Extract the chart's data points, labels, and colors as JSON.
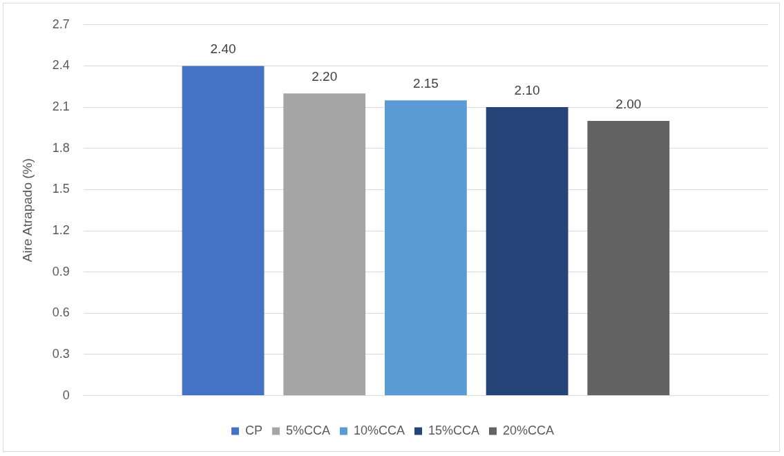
{
  "chart_data": {
    "type": "bar",
    "ylabel": "Aire Atrapado (%)",
    "categories": [
      null
    ],
    "series": [
      {
        "name": "CP",
        "color": "#4472c4",
        "values": [
          2.4
        ],
        "value_labels": [
          "2.40"
        ]
      },
      {
        "name": "5%CCA",
        "color": "#a5a5a5",
        "values": [
          2.2
        ],
        "value_labels": [
          "2.20"
        ]
      },
      {
        "name": "10%CCA",
        "color": "#5b9bd5",
        "values": [
          2.15
        ],
        "value_labels": [
          "2.15"
        ]
      },
      {
        "name": "15%CCA",
        "color": "#264478",
        "values": [
          2.1
        ],
        "value_labels": [
          "2.10"
        ]
      },
      {
        "name": "20%CCA",
        "color": "#636363",
        "values": [
          2.0
        ],
        "value_labels": [
          "2.00"
        ]
      }
    ],
    "ylim": [
      0,
      2.7
    ],
    "yticks": [
      0,
      0.3,
      0.6,
      0.9,
      1.2,
      1.5,
      1.8,
      2.1,
      2.4,
      2.7
    ],
    "grid": "y",
    "legend": "bottom"
  }
}
